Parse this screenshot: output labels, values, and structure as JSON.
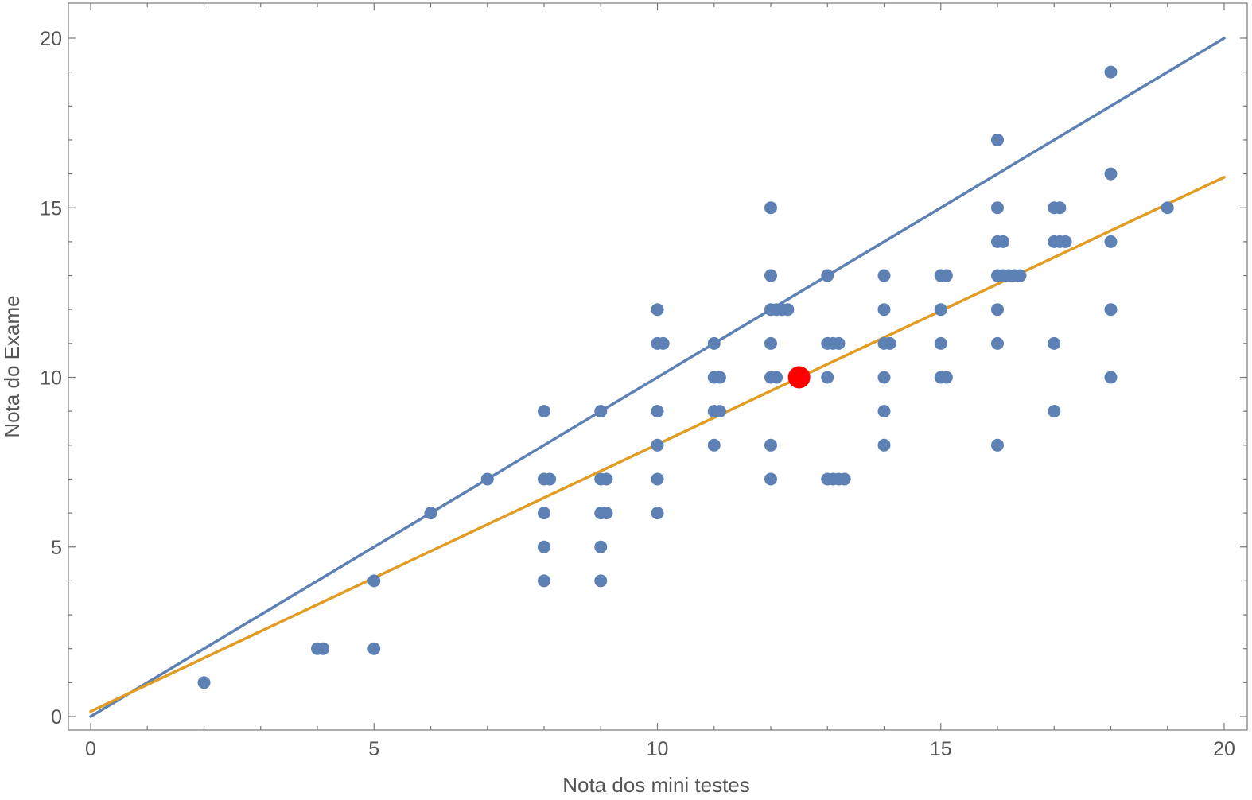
{
  "chart_data": {
    "type": "scatter",
    "title": "",
    "xlabel": "Nota dos mini testes",
    "ylabel": "Nota do Exame",
    "xlim": [
      -0.4,
      20.4
    ],
    "ylim": [
      -0.4,
      21
    ],
    "x_ticks": [
      0,
      5,
      10,
      15,
      20
    ],
    "y_ticks": [
      0,
      5,
      10,
      15,
      20
    ],
    "x_tick_labels": [
      "0",
      "5",
      "10",
      "15",
      "20"
    ],
    "y_tick_labels": [
      "0",
      "5",
      "10",
      "15",
      "20"
    ],
    "grid": false,
    "frame": true,
    "series": [
      {
        "kind": "points",
        "color": "#5e81b5",
        "points": [
          [
            2,
            1
          ],
          [
            4,
            2
          ],
          [
            4.1,
            2
          ],
          [
            5,
            4
          ],
          [
            5,
            2
          ],
          [
            6,
            6
          ],
          [
            7,
            7
          ],
          [
            8,
            9
          ],
          [
            8,
            7
          ],
          [
            8.1,
            7
          ],
          [
            8,
            6
          ],
          [
            8,
            5
          ],
          [
            8,
            4
          ],
          [
            9,
            9
          ],
          [
            9,
            7
          ],
          [
            9.1,
            7
          ],
          [
            9,
            6
          ],
          [
            9.1,
            6
          ],
          [
            9,
            5
          ],
          [
            9,
            4
          ],
          [
            10,
            12
          ],
          [
            10,
            11
          ],
          [
            10.1,
            11
          ],
          [
            10,
            9
          ],
          [
            10,
            8
          ],
          [
            10,
            7
          ],
          [
            10,
            6
          ],
          [
            11,
            11
          ],
          [
            11,
            10
          ],
          [
            11.1,
            10
          ],
          [
            11,
            9
          ],
          [
            11.1,
            9
          ],
          [
            11,
            8
          ],
          [
            12,
            15
          ],
          [
            12,
            13
          ],
          [
            12,
            12
          ],
          [
            12.1,
            12
          ],
          [
            12.2,
            12
          ],
          [
            12.3,
            12
          ],
          [
            12,
            11
          ],
          [
            12,
            10
          ],
          [
            12.1,
            10
          ],
          [
            12,
            8
          ],
          [
            12,
            7
          ],
          [
            13,
            13
          ],
          [
            13,
            11
          ],
          [
            13.1,
            11
          ],
          [
            13.2,
            11
          ],
          [
            13,
            10
          ],
          [
            13,
            7
          ],
          [
            13.1,
            7
          ],
          [
            13.2,
            7
          ],
          [
            13.3,
            7
          ],
          [
            14,
            13
          ],
          [
            14,
            12
          ],
          [
            14,
            11
          ],
          [
            14.1,
            11
          ],
          [
            14,
            10
          ],
          [
            14,
            9
          ],
          [
            14,
            8
          ],
          [
            15,
            13
          ],
          [
            15.1,
            13
          ],
          [
            15,
            12
          ],
          [
            15,
            11
          ],
          [
            15,
            10
          ],
          [
            15.1,
            10
          ],
          [
            16,
            17
          ],
          [
            16,
            15
          ],
          [
            16,
            14
          ],
          [
            16.1,
            14
          ],
          [
            16,
            13
          ],
          [
            16.1,
            13
          ],
          [
            16.2,
            13
          ],
          [
            16.3,
            13
          ],
          [
            16.4,
            13
          ],
          [
            16,
            12
          ],
          [
            16,
            11
          ],
          [
            16,
            8
          ],
          [
            17,
            15
          ],
          [
            17.1,
            15
          ],
          [
            17,
            14
          ],
          [
            17.1,
            14
          ],
          [
            17.2,
            14
          ],
          [
            17,
            11
          ],
          [
            17,
            9
          ],
          [
            18,
            19
          ],
          [
            18,
            16
          ],
          [
            18,
            14
          ],
          [
            18,
            12
          ],
          [
            18,
            10
          ],
          [
            19,
            15
          ]
        ]
      },
      {
        "kind": "highlight",
        "color": "#ff0000",
        "points": [
          [
            12.5,
            10
          ]
        ]
      },
      {
        "kind": "line",
        "color": "#5e81b5",
        "from": [
          0,
          0
        ],
        "to": [
          20,
          20
        ]
      },
      {
        "kind": "line",
        "color": "#e19c24",
        "from": [
          0,
          0.15
        ],
        "to": [
          20,
          15.9
        ]
      }
    ]
  }
}
